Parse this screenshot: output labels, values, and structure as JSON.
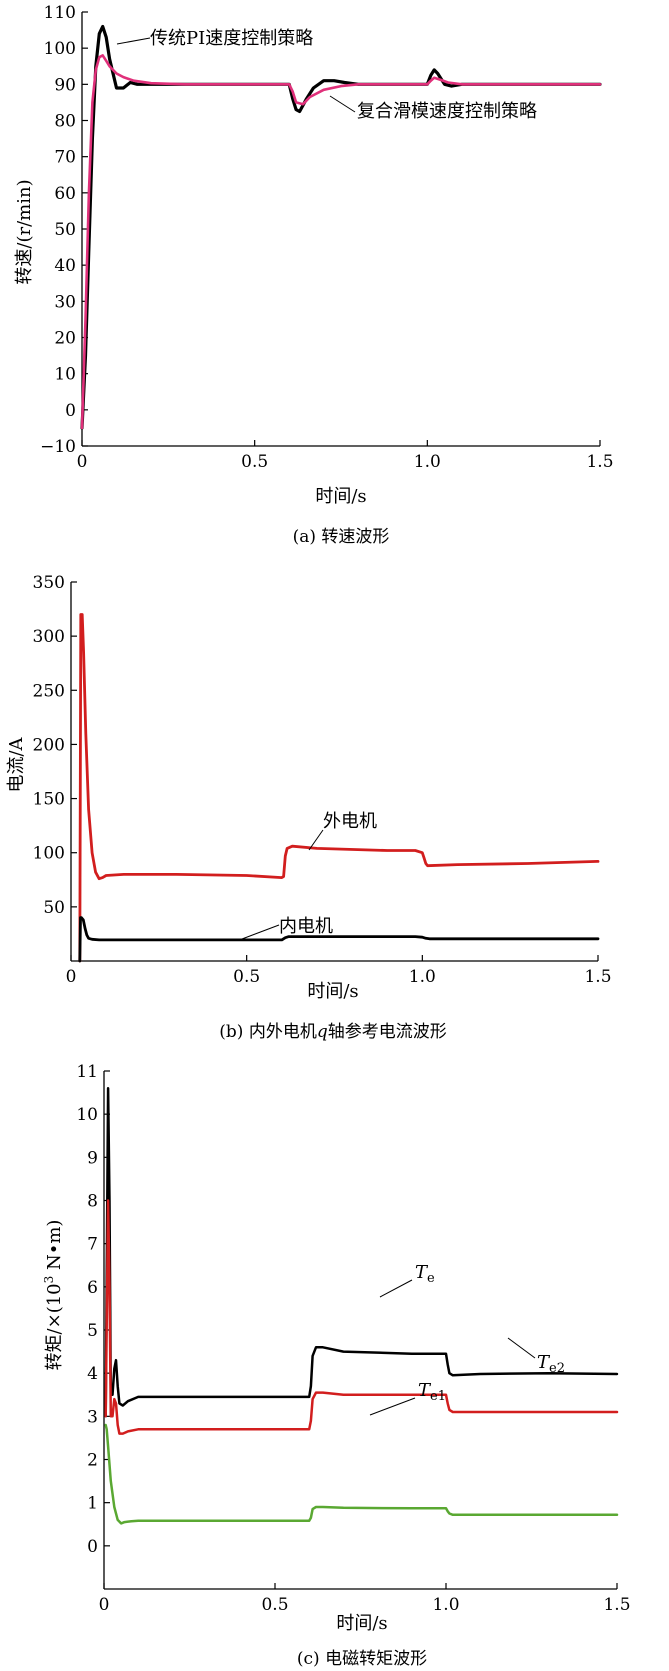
{
  "colors": {
    "black": "#000000",
    "pink": "#e0307a",
    "red": "#d21e1e",
    "green": "#5aa832"
  },
  "figure": {
    "panel_a": {
      "caption": "(a) 转速波形",
      "ylabel": "转速/(r/min)",
      "xlabel": "时间/s",
      "annotations": [
        "传统PI速度控制策略",
        "复合滑模速度控制策略"
      ]
    },
    "panel_b": {
      "caption_pre": "(b) 内外电机",
      "caption_q": "q",
      "caption_post": "轴参考电流波形",
      "ylabel": "电流/A",
      "xlabel": "时间/s",
      "annotations": [
        "外电机",
        "内电机"
      ]
    },
    "panel_c": {
      "caption": "(c) 电磁转矩波形",
      "ylabel_pre": "转矩/×(10",
      "ylabel_sup": "3",
      "ylabel_post": " N•m)",
      "xlabel": "时间/s",
      "annotations": [
        {
          "main": "T",
          "sub": "e"
        },
        {
          "main": "T",
          "sub": "e2"
        },
        {
          "main": "T",
          "sub": "e1"
        }
      ]
    }
  },
  "chart_data": [
    {
      "type": "line",
      "xlim": [
        0,
        1.5
      ],
      "ylim": [
        -10,
        110
      ],
      "xticks": [
        "0",
        "0.5",
        "1.0",
        "1.5"
      ],
      "yticks": [
        "−10",
        "0",
        "10",
        "20",
        "30",
        "40",
        "50",
        "60",
        "70",
        "80",
        "90",
        "100",
        "110"
      ],
      "xtick_values": [
        0,
        0.5,
        1.0,
        1.5
      ],
      "ytick_values": [
        -10,
        0,
        10,
        20,
        30,
        40,
        50,
        60,
        70,
        80,
        90,
        100,
        110
      ],
      "series": [
        {
          "name": "传统PI速度控制策略",
          "color": "#000000",
          "x": [
            0,
            0.01,
            0.02,
            0.03,
            0.04,
            0.05,
            0.06,
            0.07,
            0.08,
            0.1,
            0.12,
            0.14,
            0.16,
            0.18,
            0.2,
            0.3,
            0.5,
            0.6,
            0.61,
            0.62,
            0.63,
            0.65,
            0.67,
            0.7,
            0.73,
            0.76,
            0.8,
            0.9,
            1.0,
            1.01,
            1.02,
            1.03,
            1.05,
            1.07,
            1.1,
            1.2,
            1.3,
            1.5
          ],
          "y": [
            -5,
            15,
            45,
            75,
            95,
            104,
            106,
            103,
            97,
            89,
            89,
            90.5,
            90,
            90,
            90,
            90,
            90,
            90,
            86,
            83,
            82.5,
            86,
            89,
            91,
            91,
            90.5,
            90,
            90,
            90,
            92.5,
            94,
            93,
            90,
            89.5,
            90,
            90,
            90,
            90
          ]
        },
        {
          "name": "复合滑模速度控制策略",
          "color": "#e0307a",
          "x": [
            0,
            0.01,
            0.02,
            0.03,
            0.04,
            0.05,
            0.06,
            0.07,
            0.08,
            0.1,
            0.12,
            0.15,
            0.2,
            0.3,
            0.5,
            0.6,
            0.61,
            0.62,
            0.64,
            0.66,
            0.7,
            0.75,
            0.8,
            0.9,
            1.0,
            1.01,
            1.02,
            1.04,
            1.06,
            1.1,
            1.5
          ],
          "y": [
            -5,
            25,
            60,
            85,
            94,
            97.5,
            98,
            96.5,
            95,
            93,
            92,
            91,
            90.3,
            90,
            90,
            90,
            88,
            85,
            84.5,
            86.5,
            88.5,
            89.5,
            90,
            90,
            90,
            91,
            91.8,
            91.2,
            90.5,
            90,
            90
          ]
        }
      ]
    },
    {
      "type": "line",
      "xlim": [
        0,
        1.5
      ],
      "ylim": [
        0,
        350
      ],
      "xticks": [
        "0",
        "0.5",
        "1.0",
        "1.5"
      ],
      "yticks": [
        "50",
        "100",
        "150",
        "200",
        "250",
        "300",
        "350"
      ],
      "xtick_values": [
        0,
        0.5,
        1.0,
        1.5
      ],
      "ytick_values": [
        50,
        100,
        150,
        200,
        250,
        300,
        350
      ],
      "series": [
        {
          "name": "外电机",
          "color": "#d21e1e",
          "x": [
            0.025,
            0.028,
            0.032,
            0.036,
            0.042,
            0.05,
            0.06,
            0.07,
            0.08,
            0.09,
            0.1,
            0.15,
            0.3,
            0.5,
            0.6,
            0.605,
            0.61,
            0.615,
            0.63,
            0.7,
            0.9,
            0.98,
            1.0,
            1.005,
            1.01,
            1.015,
            1.1,
            1.3,
            1.5
          ],
          "y": [
            0,
            320,
            320,
            285,
            210,
            140,
            100,
            82,
            76,
            77,
            79,
            80,
            80,
            79,
            77,
            78,
            97,
            104,
            106,
            104,
            102,
            102,
            100,
            95,
            90,
            88,
            89,
            90,
            92
          ]
        },
        {
          "name": "内电机",
          "color": "#000000",
          "x": [
            0.025,
            0.027,
            0.03,
            0.035,
            0.04,
            0.045,
            0.05,
            0.06,
            0.08,
            0.1,
            0.3,
            0.5,
            0.6,
            0.61,
            0.62,
            0.7,
            0.9,
            0.98,
            1.0,
            1.01,
            1.02,
            1.1,
            1.5
          ],
          "y": [
            0,
            40,
            40,
            38,
            30,
            24,
            21,
            20,
            19.5,
            19.5,
            19.5,
            19.5,
            19.5,
            21.5,
            22.5,
            22.5,
            22.5,
            22.5,
            22,
            21,
            20.5,
            20.5,
            20.5
          ]
        }
      ]
    },
    {
      "type": "line",
      "xlim": [
        0,
        1.5
      ],
      "ylim": [
        -1,
        11
      ],
      "xticks": [
        "0",
        "0.5",
        "1.0",
        "1.5"
      ],
      "yticks": [
        "0",
        "1",
        "2",
        "3",
        "4",
        "5",
        "6",
        "7",
        "8",
        "9",
        "10",
        "11"
      ],
      "xtick_values": [
        0,
        0.5,
        1.0,
        1.5
      ],
      "ytick_values": [
        0,
        1,
        2,
        3,
        4,
        5,
        6,
        7,
        8,
        9,
        10,
        11
      ],
      "series": [
        {
          "name": "Te",
          "color": "#000000",
          "x": [
            0.005,
            0.012,
            0.016,
            0.02,
            0.025,
            0.03,
            0.035,
            0.04,
            0.045,
            0.055,
            0.07,
            0.1,
            0.2,
            0.5,
            0.6,
            0.605,
            0.61,
            0.62,
            0.64,
            0.7,
            0.9,
            1.0,
            1.005,
            1.01,
            1.02,
            1.1,
            1.3,
            1.5
          ],
          "y": [
            3,
            10.6,
            8,
            3.5,
            3.5,
            4.1,
            4.3,
            3.7,
            3.3,
            3.25,
            3.35,
            3.45,
            3.45,
            3.45,
            3.45,
            3.7,
            4.4,
            4.6,
            4.6,
            4.5,
            4.45,
            4.45,
            4.2,
            4.0,
            3.95,
            3.98,
            4.0,
            3.98
          ]
        },
        {
          "name": "Te2",
          "color": "#d21e1e",
          "x": [
            0.005,
            0.012,
            0.016,
            0.02,
            0.025,
            0.03,
            0.035,
            0.04,
            0.045,
            0.055,
            0.07,
            0.1,
            0.2,
            0.5,
            0.6,
            0.605,
            0.61,
            0.62,
            0.64,
            0.7,
            0.9,
            1.0,
            1.005,
            1.01,
            1.02,
            1.1,
            1.3,
            1.5
          ],
          "y": [
            3,
            8,
            6,
            3,
            3,
            3.4,
            3.3,
            2.8,
            2.6,
            2.6,
            2.65,
            2.7,
            2.7,
            2.7,
            2.7,
            2.9,
            3.4,
            3.55,
            3.55,
            3.5,
            3.5,
            3.5,
            3.3,
            3.15,
            3.1,
            3.1,
            3.1,
            3.1
          ]
        },
        {
          "name": "Te1",
          "color": "#5aa832",
          "x": [
            0.005,
            0.008,
            0.012,
            0.02,
            0.03,
            0.04,
            0.05,
            0.06,
            0.08,
            0.1,
            0.2,
            0.5,
            0.6,
            0.605,
            0.61,
            0.62,
            0.64,
            0.7,
            0.9,
            1.0,
            1.005,
            1.01,
            1.02,
            1.1,
            1.3,
            1.5
          ],
          "y": [
            2.8,
            2.7,
            2.3,
            1.5,
            0.9,
            0.6,
            0.52,
            0.55,
            0.57,
            0.58,
            0.58,
            0.58,
            0.58,
            0.65,
            0.85,
            0.9,
            0.9,
            0.88,
            0.87,
            0.87,
            0.8,
            0.75,
            0.72,
            0.72,
            0.72,
            0.72
          ]
        }
      ]
    }
  ]
}
